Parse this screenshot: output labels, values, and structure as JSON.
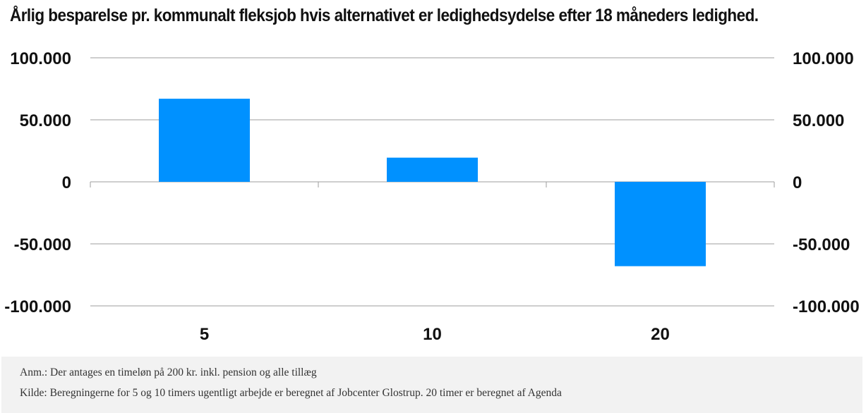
{
  "chart_data": {
    "type": "bar",
    "title": "Årlig besparelse pr. kommunalt fleksjob hvis alternativet er ledighedsydelse efter 18 måneders ledighed.",
    "categories": [
      "5",
      "10",
      "20"
    ],
    "series": [
      {
        "values": [
          67000,
          19500,
          -68000
        ]
      }
    ],
    "ylim": [
      -100000,
      100000
    ],
    "yticks": [
      100000,
      50000,
      0,
      -50000,
      -100000
    ],
    "ytick_labels": [
      "100.000",
      "50.000",
      "0",
      "-50.000",
      "-100.000"
    ],
    "xlabel": "",
    "ylabel": "",
    "grid": true,
    "legend": "none",
    "colors": {
      "bar": "#0091ff",
      "grid": "#9e9e9e"
    }
  },
  "notes": {
    "anm": "Anm.: Der antages en timeløn på 200 kr. inkl. pension og alle tillæg",
    "kilde": "Kilde: Beregningerne for 5 og 10 timers ugentligt arbejde er beregnet af Jobcenter Glostrup. 20 timer er beregnet af Agenda"
  }
}
